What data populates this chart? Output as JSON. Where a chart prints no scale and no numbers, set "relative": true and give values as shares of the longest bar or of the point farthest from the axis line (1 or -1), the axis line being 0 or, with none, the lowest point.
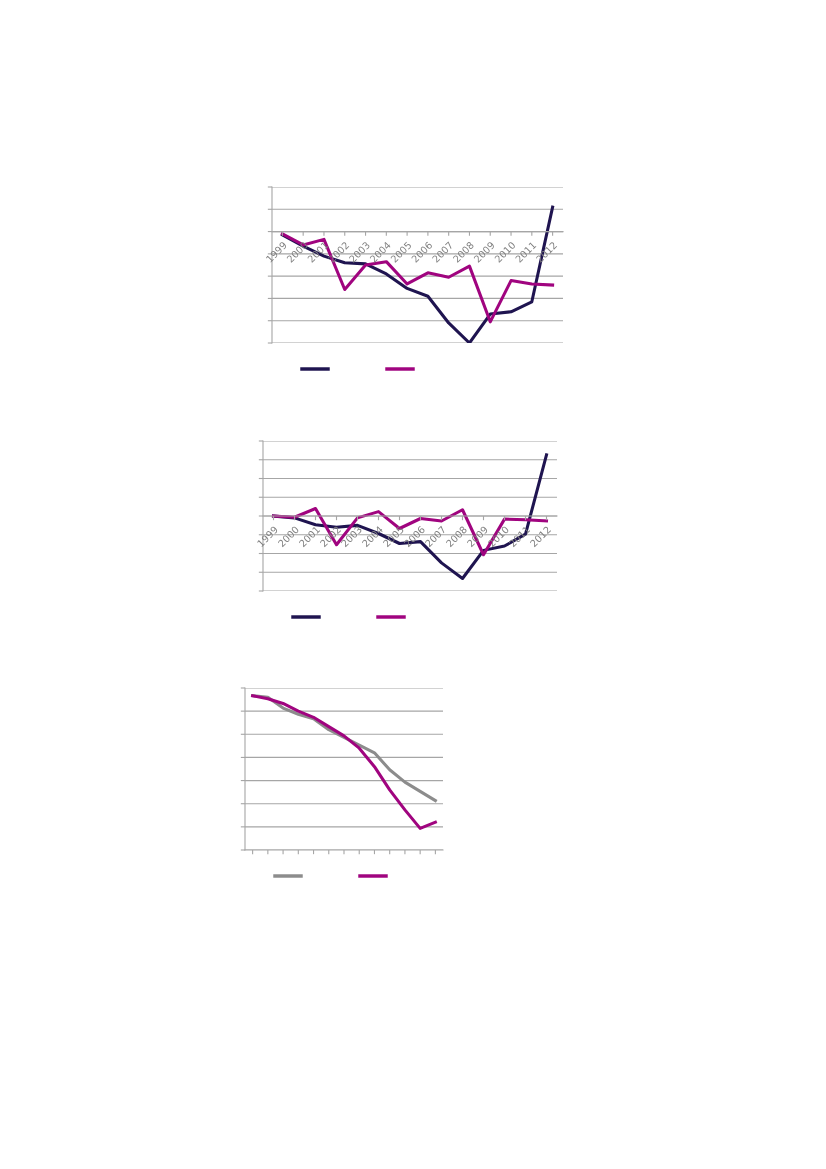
{
  "chart_data": [
    {
      "type": "line",
      "relative": true,
      "grid": "y",
      "line_style": "solid",
      "marker": "none",
      "categories": [
        "1999",
        "2000",
        "2001",
        "2002",
        "2003",
        "2004",
        "2005",
        "2006",
        "2007",
        "2008",
        "2009",
        "2010",
        "2011",
        "2012"
      ],
      "series": [
        {
          "color": "#1f1450",
          "values": [
            -0.03,
            -0.13,
            -0.22,
            -0.28,
            -0.29,
            -0.38,
            -0.51,
            -0.58,
            -0.82,
            -1,
            -0.74,
            -0.72,
            -0.63,
            0.22
          ]
        },
        {
          "color": "#a0047f",
          "values": [
            -0.02,
            -0.12,
            -0.07,
            -0.52,
            -0.3,
            -0.27,
            -0.47,
            -0.37,
            -0.41,
            -0.31,
            -0.81,
            -0.44,
            -0.47,
            -0.48
          ]
        }
      ]
    },
    {
      "type": "line",
      "relative": true,
      "grid": "y",
      "line_style": "solid",
      "marker": "none",
      "categories": [
        "1999",
        "2000",
        "2001",
        "2002",
        "2003",
        "2004",
        "2005",
        "2006",
        "2007",
        "2008",
        "2009",
        "2010",
        "2011",
        "2012"
      ],
      "series": [
        {
          "color": "#1f1450",
          "values": [
            0,
            -0.03,
            -0.14,
            -0.18,
            -0.15,
            -0.28,
            -0.44,
            -0.41,
            -0.75,
            -1,
            -0.55,
            -0.48,
            -0.29,
            0.98
          ]
        },
        {
          "color": "#a0047f",
          "values": [
            0,
            -0.02,
            0.12,
            -0.46,
            -0.03,
            0.07,
            -0.2,
            -0.04,
            -0.08,
            0.1,
            -0.62,
            -0.05,
            -0.06,
            -0.08
          ]
        }
      ]
    },
    {
      "type": "line",
      "relative": true,
      "grid": "y",
      "line_style": "solid",
      "marker": "none",
      "categories": [
        null,
        null,
        null,
        null,
        null,
        null,
        null,
        null,
        null,
        null,
        null,
        null,
        null
      ],
      "series": [
        {
          "color": "#8c8c8c",
          "values": [
            1,
            0.99,
            0.92,
            0.88,
            0.85,
            0.78,
            0.73,
            0.68,
            0.63,
            0.52,
            0.44,
            0.38,
            0.32
          ]
        },
        {
          "color": "#a0047f",
          "values": [
            1,
            0.98,
            0.95,
            0.9,
            0.86,
            0.8,
            0.74,
            0.66,
            0.54,
            0.39,
            0.26,
            0.14,
            0.18
          ]
        }
      ]
    }
  ]
}
